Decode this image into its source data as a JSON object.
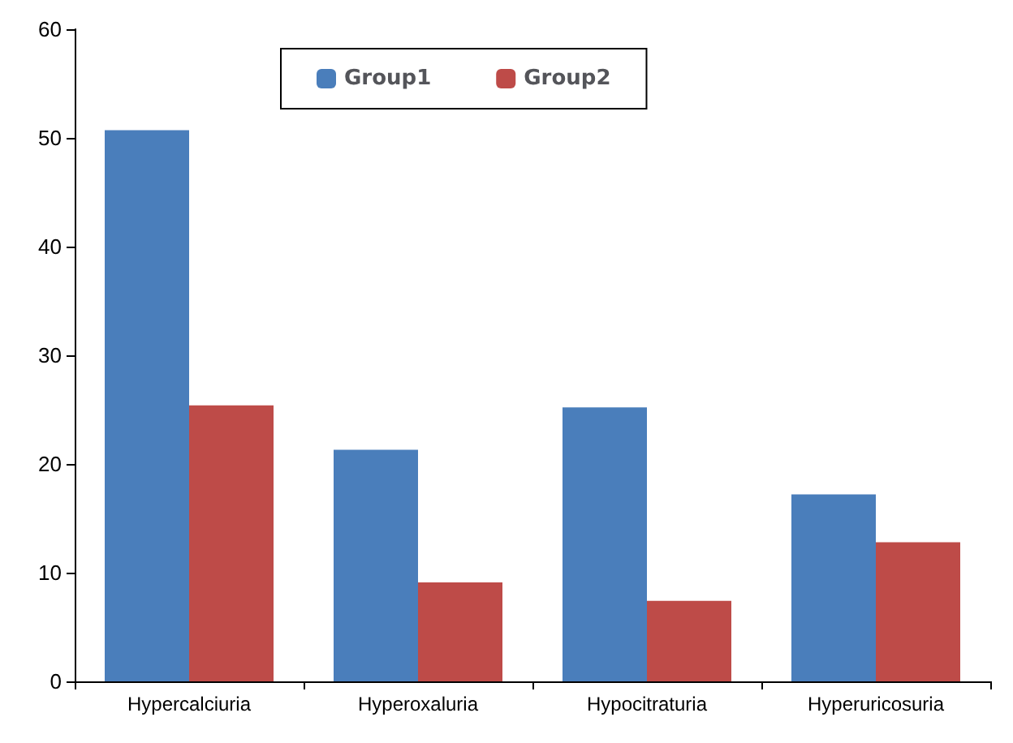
{
  "chart_data": {
    "type": "bar",
    "categories": [
      "Hypercalciuria",
      "Hyperoxaluria",
      "Hypocitraturia",
      "Hyperuricosuria"
    ],
    "series": [
      {
        "name": "Group1",
        "color": "#4a7ebb",
        "values": [
          50.7,
          21.3,
          25.2,
          17.2
        ]
      },
      {
        "name": "Group2",
        "color": "#be4b48",
        "values": [
          25.4,
          9.1,
          7.4,
          12.8
        ]
      }
    ],
    "ylim": [
      0,
      60
    ],
    "yticks": [
      0,
      10,
      20,
      30,
      40,
      50,
      60
    ],
    "grid": false,
    "legend": "top"
  }
}
